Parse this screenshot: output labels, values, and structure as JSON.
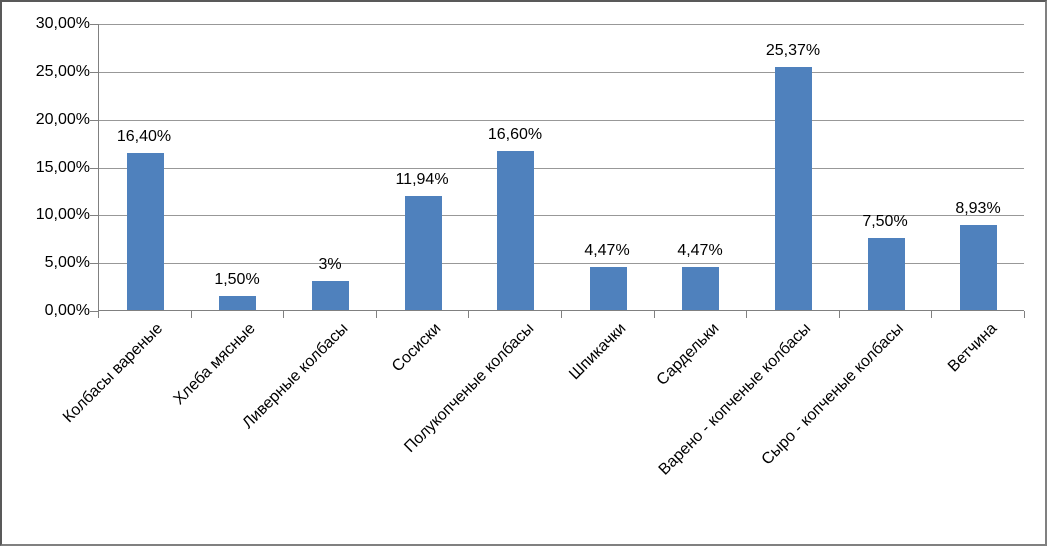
{
  "chart_data": {
    "type": "bar",
    "title": "",
    "xlabel": "",
    "ylabel": "",
    "categories": [
      "Колбасы вареные",
      "Хлеба мясные",
      "Ливерные колбасы",
      "Сосиски",
      "Полукопченые колбасы",
      "Шпикачки",
      "Сардельки",
      "Варено - копченые колбасы",
      "Сыро - копченые колбасы",
      "Ветчина"
    ],
    "values": [
      16.4,
      1.5,
      3,
      11.94,
      16.6,
      4.47,
      4.47,
      25.37,
      7.5,
      8.93
    ],
    "data_labels": [
      "16,40%",
      "1,50%",
      "3%",
      "11,94%",
      "16,60%",
      "4,47%",
      "4,47%",
      "25,37%",
      "7,50%",
      "8,93%"
    ],
    "y_tick_labels": [
      "0,00%",
      "5,00%",
      "10,00%",
      "15,00%",
      "20,00%",
      "25,00%",
      "30,00%"
    ],
    "ylim": [
      0,
      30
    ],
    "y_step": 5,
    "grid": true,
    "legend": "none",
    "category_label_rotation_deg": 45,
    "colors": {
      "bar": "#4F81BD",
      "gridline": "#989898",
      "axis": "#808080",
      "text": "#000000",
      "background": "#ffffff"
    }
  }
}
